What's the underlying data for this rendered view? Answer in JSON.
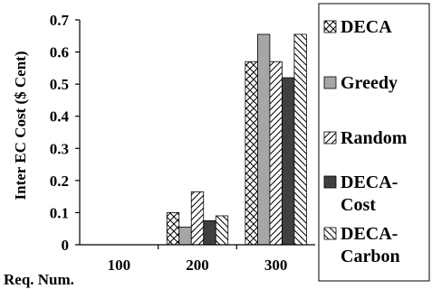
{
  "chart_data": {
    "type": "bar",
    "categories": [
      "100",
      "200",
      "300"
    ],
    "series": [
      {
        "name": "DECA",
        "values": [
          0,
          0.1,
          0.57
        ],
        "pattern": "crosshatch"
      },
      {
        "name": "Greedy",
        "values": [
          0,
          0.055,
          0.655
        ],
        "pattern": "gray",
        "color": "#a6a6a6"
      },
      {
        "name": "Random",
        "values": [
          0,
          0.165,
          0.57
        ],
        "pattern": "diagonal-forward"
      },
      {
        "name": "DECA-Cost",
        "values": [
          0,
          0.075,
          0.52
        ],
        "pattern": "solid",
        "color": "#404040"
      },
      {
        "name": "DECA-Carbon",
        "values": [
          0,
          0.09,
          0.655
        ],
        "pattern": "diagonal-back"
      }
    ],
    "legend_lines": [
      [
        "DECA"
      ],
      [
        "Greedy"
      ],
      [
        "Random"
      ],
      [
        "DECA-",
        "Cost"
      ],
      [
        "DECA-",
        "Carbon"
      ]
    ],
    "ylabel": "Inter EC Cost ($ Cent)",
    "xlabel": "Req. Num.",
    "yticks": [
      "0",
      "0.1",
      "0.2",
      "0.3",
      "0.4",
      "0.5",
      "0.6",
      "0.7"
    ],
    "ylim": [
      0,
      0.7
    ],
    "grid": false,
    "legend_position": "right"
  }
}
